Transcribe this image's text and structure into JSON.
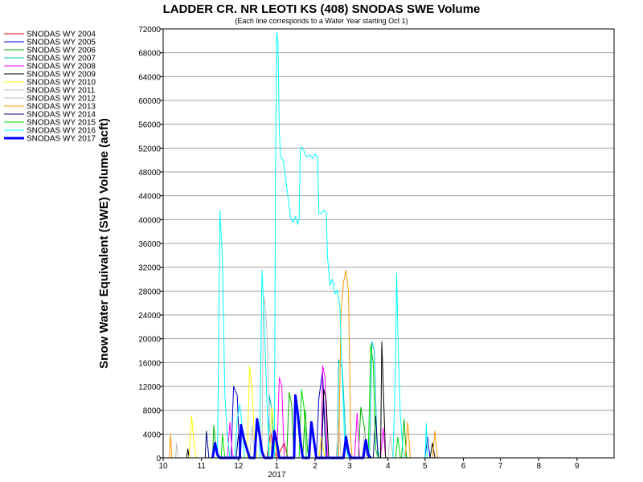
{
  "chart_data": {
    "type": "line",
    "title": "LADDER CR. NR LEOTI KS (408) SNODAS SWE Volume",
    "subtitle": "(Each line corresponds to a Water Year starting Oct 1)",
    "xlabel": "",
    "ylabel": "Snow Water Equivalent (SWE) Volume (acft)",
    "ylim": [
      0,
      72000
    ],
    "yticks": [
      0,
      4000,
      8000,
      12000,
      16000,
      20000,
      24000,
      28000,
      32000,
      36000,
      40000,
      44000,
      48000,
      52000,
      56000,
      60000,
      64000,
      68000,
      72000
    ],
    "xlim_days": [
      0,
      365
    ],
    "xticks": [
      {
        "day": 0,
        "label": "10"
      },
      {
        "day": 31,
        "label": "11"
      },
      {
        "day": 61,
        "label": "12"
      },
      {
        "day": 92,
        "label": "1"
      },
      {
        "day": 123,
        "label": "2"
      },
      {
        "day": 151,
        "label": "3"
      },
      {
        "day": 182,
        "label": "4"
      },
      {
        "day": 212,
        "label": "5"
      },
      {
        "day": 243,
        "label": "6"
      },
      {
        "day": 273,
        "label": "7"
      },
      {
        "day": 304,
        "label": "8"
      },
      {
        "day": 335,
        "label": "9"
      }
    ],
    "year_label": {
      "day": 92,
      "label": "2017"
    },
    "grid": true,
    "legend_position": "left",
    "series": [
      {
        "name": "SNODAS WY 2004",
        "color": "#e00000",
        "width": 1,
        "points": [
          [
            84,
            0
          ],
          [
            87,
            4500
          ],
          [
            89,
            1500
          ],
          [
            92,
            0
          ],
          [
            98,
            2500
          ],
          [
            101,
            0
          ]
        ]
      },
      {
        "name": "SNODAS WY 2005",
        "color": "#0000cc",
        "width": 1,
        "points": [
          [
            55,
            0
          ],
          [
            57,
            12000
          ],
          [
            60,
            10500
          ],
          [
            62,
            0
          ],
          [
            124,
            0
          ],
          [
            126,
            10000
          ],
          [
            129,
            14500
          ],
          [
            131,
            4000
          ],
          [
            133,
            0
          ],
          [
            212,
            0
          ],
          [
            214,
            3500
          ],
          [
            216,
            0
          ]
        ]
      },
      {
        "name": "SNODAS WY 2006",
        "color": "#00b000",
        "width": 1,
        "points": [
          [
            40,
            0
          ],
          [
            41,
            5500
          ],
          [
            43,
            800
          ],
          [
            45,
            0
          ],
          [
            100,
            0
          ],
          [
            102,
            11000
          ],
          [
            104,
            9000
          ],
          [
            106,
            0
          ],
          [
            113,
            0
          ],
          [
            115,
            8000
          ],
          [
            117,
            1000
          ],
          [
            119,
            0
          ],
          [
            158,
            0
          ],
          [
            160,
            8500
          ],
          [
            163,
            5000
          ],
          [
            165,
            0
          ],
          [
            193,
            0
          ],
          [
            195,
            6500
          ],
          [
            197,
            0
          ]
        ]
      },
      {
        "name": "SNODAS WY 2007",
        "color": "#00c0c0",
        "width": 1,
        "points": [
          [
            85,
            0
          ],
          [
            86,
            10500
          ],
          [
            88,
            8000
          ],
          [
            90,
            0
          ],
          [
            141,
            0
          ],
          [
            142,
            16500
          ],
          [
            145,
            15000
          ],
          [
            148,
            2500
          ],
          [
            150,
            0
          ],
          [
            167,
            0
          ],
          [
            169,
            19500
          ],
          [
            171,
            18000
          ],
          [
            173,
            2500
          ],
          [
            175,
            0
          ]
        ]
      },
      {
        "name": "SNODAS WY 2008",
        "color": "#ff00ff",
        "width": 1,
        "points": [
          [
            52,
            0
          ],
          [
            54,
            6000
          ],
          [
            56,
            500
          ],
          [
            58,
            0
          ],
          [
            92,
            0
          ],
          [
            94,
            13500
          ],
          [
            96,
            12000
          ],
          [
            98,
            0
          ],
          [
            128,
            0
          ],
          [
            129,
            15500
          ],
          [
            131,
            13500
          ],
          [
            133,
            0
          ],
          [
            155,
            0
          ],
          [
            157,
            7500
          ],
          [
            159,
            0
          ],
          [
            176,
            0
          ],
          [
            178,
            5000
          ],
          [
            180,
            0
          ]
        ]
      },
      {
        "name": "SNODAS WY 2009",
        "color": "#000000",
        "width": 1,
        "points": [
          [
            19,
            0
          ],
          [
            20,
            1500
          ],
          [
            21,
            0
          ],
          [
            128,
            0
          ],
          [
            130,
            11500
          ],
          [
            132,
            9500
          ],
          [
            134,
            0
          ],
          [
            176,
            0
          ],
          [
            177,
            19500
          ],
          [
            178,
            13000
          ],
          [
            180,
            0
          ],
          [
            216,
            0
          ],
          [
            218,
            2500
          ],
          [
            220,
            0
          ]
        ]
      },
      {
        "name": "SNODAS WY 2010",
        "color": "#ffff00",
        "width": 1,
        "points": [
          [
            21,
            0
          ],
          [
            23,
            7000
          ],
          [
            25,
            2500
          ],
          [
            27,
            0
          ],
          [
            68,
            0
          ],
          [
            70,
            15500
          ],
          [
            72,
            11500
          ],
          [
            74,
            3000
          ],
          [
            76,
            0
          ],
          [
            86,
            0
          ],
          [
            88,
            8500
          ],
          [
            90,
            4000
          ],
          [
            92,
            0
          ],
          [
            126,
            0
          ],
          [
            128,
            3500
          ],
          [
            131,
            0
          ]
        ]
      },
      {
        "name": "SNODAS WY 2011",
        "color": "#c0c0c0",
        "width": 1,
        "points": [
          [
            10,
            0
          ],
          [
            11,
            2500
          ],
          [
            12,
            0
          ],
          [
            70,
            0
          ],
          [
            72,
            5500
          ],
          [
            74,
            0
          ],
          [
            182,
            0
          ],
          [
            184,
            4000
          ],
          [
            186,
            0
          ]
        ]
      },
      {
        "name": "SNODAS WY 2012",
        "color": "#bfbfbf",
        "width": 1,
        "points": [
          [
            80,
            0
          ],
          [
            81,
            24500
          ],
          [
            82,
            27000
          ],
          [
            84,
            21500
          ],
          [
            86,
            6000
          ],
          [
            88,
            0
          ],
          [
            140,
            0
          ],
          [
            142,
            6500
          ],
          [
            144,
            0
          ],
          [
            161,
            0
          ],
          [
            163,
            4500
          ],
          [
            165,
            0
          ]
        ]
      },
      {
        "name": "SNODAS WY 2013",
        "color": "#ff9900",
        "width": 1,
        "points": [
          [
            5,
            0
          ],
          [
            6,
            4000
          ],
          [
            7,
            0
          ],
          [
            142,
            0
          ],
          [
            144,
            24500
          ],
          [
            146,
            29500
          ],
          [
            148,
            31500
          ],
          [
            150,
            28000
          ],
          [
            152,
            2500
          ],
          [
            153,
            0
          ],
          [
            196,
            0
          ],
          [
            198,
            6000
          ],
          [
            200,
            0
          ],
          [
            218,
            0
          ],
          [
            220,
            4500
          ],
          [
            222,
            0
          ]
        ]
      },
      {
        "name": "SNODAS WY 2014",
        "color": "#000080",
        "width": 1,
        "points": [
          [
            34,
            0
          ],
          [
            35,
            4500
          ],
          [
            37,
            0
          ],
          [
            59,
            0
          ],
          [
            61,
            4000
          ],
          [
            63,
            0
          ],
          [
            128,
            0
          ],
          [
            130,
            9500
          ],
          [
            132,
            0
          ],
          [
            170,
            0
          ],
          [
            172,
            7000
          ],
          [
            174,
            0
          ]
        ]
      },
      {
        "name": "SNODAS WY 2015",
        "color": "#00dd00",
        "width": 1,
        "points": [
          [
            47,
            0
          ],
          [
            48,
            4000
          ],
          [
            50,
            0
          ],
          [
            110,
            0
          ],
          [
            112,
            11500
          ],
          [
            114,
            8500
          ],
          [
            116,
            0
          ],
          [
            166,
            0
          ],
          [
            168,
            19000
          ],
          [
            170,
            16000
          ],
          [
            172,
            1500
          ],
          [
            174,
            0
          ],
          [
            188,
            0
          ],
          [
            190,
            3500
          ],
          [
            192,
            0
          ]
        ]
      },
      {
        "name": "SNODAS WY 2016",
        "color": "#00ffff",
        "width": 1,
        "points": [
          [
            44,
            0
          ],
          [
            46,
            41500
          ],
          [
            48,
            33000
          ],
          [
            50,
            10500
          ],
          [
            52,
            3500
          ],
          [
            54,
            0
          ],
          [
            58,
            0
          ],
          [
            60,
            6500
          ],
          [
            62,
            9000
          ],
          [
            64,
            5000
          ],
          [
            66,
            0
          ],
          [
            78,
            0
          ],
          [
            80,
            31500
          ],
          [
            82,
            22000
          ],
          [
            84,
            9500
          ],
          [
            86,
            0
          ],
          [
            90,
            0
          ],
          [
            91,
            50000
          ],
          [
            92,
            71500
          ],
          [
            93,
            69500
          ],
          [
            94,
            55000
          ],
          [
            95,
            50500
          ],
          [
            97,
            50000
          ],
          [
            100,
            45500
          ],
          [
            103,
            40500
          ],
          [
            105,
            39500
          ],
          [
            107,
            40500
          ],
          [
            109,
            39200
          ],
          [
            110,
            40000
          ],
          [
            111,
            51500
          ],
          [
            112,
            52200
          ],
          [
            114,
            51500
          ],
          [
            116,
            50500
          ],
          [
            119,
            50800
          ],
          [
            121,
            50200
          ],
          [
            123,
            51000
          ],
          [
            125,
            50500
          ],
          [
            126,
            41000
          ],
          [
            128,
            41000
          ],
          [
            130,
            41500
          ],
          [
            132,
            41200
          ],
          [
            133,
            34000
          ],
          [
            135,
            29000
          ],
          [
            137,
            30000
          ],
          [
            139,
            27500
          ],
          [
            141,
            28200
          ],
          [
            143,
            25500
          ],
          [
            145,
            13500
          ],
          [
            147,
            2500
          ],
          [
            150,
            0
          ],
          [
            186,
            0
          ],
          [
            188,
            14000
          ],
          [
            189,
            31000
          ],
          [
            190,
            21000
          ],
          [
            192,
            7000
          ],
          [
            194,
            1500
          ],
          [
            196,
            0
          ],
          [
            212,
            0
          ],
          [
            213,
            5800
          ],
          [
            214,
            0
          ]
        ]
      },
      {
        "name": "SNODAS WY 2017",
        "color": "#0000ff",
        "width": 3,
        "points": [
          [
            40,
            0
          ],
          [
            42,
            2500
          ],
          [
            44,
            500
          ],
          [
            46,
            0
          ],
          [
            62,
            0
          ],
          [
            63,
            5500
          ],
          [
            65,
            3500
          ],
          [
            67,
            2000
          ],
          [
            70,
            0
          ],
          [
            74,
            0
          ],
          [
            76,
            6500
          ],
          [
            78,
            4000
          ],
          [
            80,
            1000
          ],
          [
            82,
            0
          ],
          [
            88,
            0
          ],
          [
            90,
            4500
          ],
          [
            92,
            2500
          ],
          [
            94,
            0
          ],
          [
            106,
            0
          ],
          [
            107,
            10500
          ],
          [
            109,
            7500
          ],
          [
            111,
            3000
          ],
          [
            113,
            0
          ],
          [
            118,
            0
          ],
          [
            120,
            6000
          ],
          [
            122,
            3000
          ],
          [
            124,
            0
          ],
          [
            146,
            0
          ],
          [
            148,
            3500
          ],
          [
            150,
            1000
          ],
          [
            152,
            0
          ],
          [
            162,
            0
          ],
          [
            164,
            3000
          ],
          [
            166,
            500
          ],
          [
            168,
            0
          ]
        ]
      }
    ]
  }
}
